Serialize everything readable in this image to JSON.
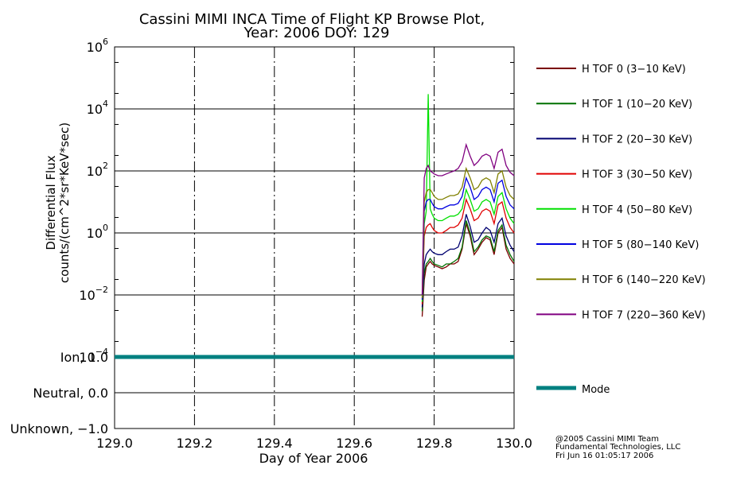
{
  "header": {
    "title_line1": "Cassini MIMI INCA Time of Flight KP Browse Plot,",
    "title_line2": "Year: 2006 DOY: 129"
  },
  "chart_data": [
    {
      "type": "line",
      "panel": "flux",
      "ylabel_line1": "Differential Flux",
      "ylabel_line2": "counts/(cm^2*sr*KeV*sec)",
      "xlim": [
        129.0,
        130.0
      ],
      "ylim": [
        0.0001,
        1000000
      ],
      "yscale": "log",
      "y_tick_labels": [
        {
          "value": 0.0001,
          "base": "10",
          "exp": "−4"
        },
        {
          "value": 0.01,
          "base": "10",
          "exp": "−2"
        },
        {
          "value": 1,
          "base": "10",
          "exp": "0"
        },
        {
          "value": 100,
          "base": "10",
          "exp": "2"
        },
        {
          "value": 10000,
          "base": "10",
          "exp": "4"
        },
        {
          "value": 1000000,
          "base": "10",
          "exp": "6"
        }
      ],
      "grid_x": [
        129.2,
        129.4,
        129.6,
        129.8
      ],
      "grid_y": [
        0.01,
        1,
        100,
        10000
      ],
      "legend_position": "right",
      "x": [
        129.77,
        129.775,
        129.78,
        129.785,
        129.79,
        129.795,
        129.8,
        129.81,
        129.82,
        129.83,
        129.84,
        129.85,
        129.86,
        129.87,
        129.88,
        129.89,
        129.9,
        129.91,
        129.92,
        129.93,
        129.94,
        129.95,
        129.96,
        129.97,
        129.98,
        129.99,
        130.0
      ],
      "series": [
        {
          "name": "H TOF 0 (3−10 KeV)",
          "color": "#7a0000",
          "values": [
            0.002,
            0.03,
            0.08,
            0.1,
            0.12,
            0.1,
            0.09,
            0.08,
            0.07,
            0.08,
            0.1,
            0.1,
            0.12,
            0.3,
            2.0,
            0.8,
            0.2,
            0.3,
            0.5,
            0.7,
            0.6,
            0.2,
            1.0,
            1.5,
            0.3,
            0.15,
            0.1
          ]
        },
        {
          "name": "H TOF 1 (10−20 KeV)",
          "color": "#007000",
          "values": [
            0.003,
            0.05,
            0.1,
            0.12,
            0.15,
            0.12,
            0.1,
            0.09,
            0.08,
            0.1,
            0.1,
            0.12,
            0.15,
            0.35,
            2.5,
            1.0,
            0.25,
            0.35,
            0.6,
            0.8,
            0.7,
            0.25,
            1.2,
            1.8,
            0.4,
            0.2,
            0.12
          ]
        },
        {
          "name": "H TOF 2 (20−30 KeV)",
          "color": "#000070",
          "values": [
            0.004,
            0.1,
            0.2,
            0.25,
            0.3,
            0.25,
            0.22,
            0.2,
            0.2,
            0.25,
            0.3,
            0.3,
            0.35,
            0.8,
            4.0,
            1.6,
            0.5,
            0.6,
            1.0,
            1.5,
            1.2,
            0.5,
            2.0,
            3.0,
            0.8,
            0.4,
            0.25
          ]
        },
        {
          "name": "H TOF 3 (30−50 KeV)",
          "color": "#e00000",
          "values": [
            0.005,
            0.8,
            1.5,
            1.8,
            2.0,
            1.5,
            1.2,
            1.0,
            1.0,
            1.2,
            1.5,
            1.5,
            1.8,
            3.0,
            12.0,
            6.0,
            2.5,
            3.0,
            5.0,
            6.0,
            5.0,
            2.0,
            8.0,
            10.0,
            3.0,
            1.5,
            1.0
          ]
        },
        {
          "name": "H TOF 4 (50−80 KeV)",
          "color": "#00e000",
          "values": [
            0.006,
            2.0,
            5.0,
            30000,
            6.0,
            4.0,
            3.0,
            2.5,
            2.5,
            3.0,
            3.5,
            3.5,
            4.0,
            6.0,
            25.0,
            12.0,
            5.0,
            6.0,
            10.0,
            12.0,
            10.0,
            4.0,
            15.0,
            20.0,
            6.0,
            3.0,
            2.0
          ]
        },
        {
          "name": "H TOF 5 (80−140 KeV)",
          "color": "#0000e0",
          "values": [
            0.007,
            5.0,
            10.0,
            12.0,
            12.0,
            9.0,
            7.0,
            6.0,
            6.0,
            7.0,
            8.0,
            8.0,
            9.0,
            15.0,
            60.0,
            30.0,
            12.0,
            15.0,
            25.0,
            30.0,
            25.0,
            10.0,
            40.0,
            50.0,
            15.0,
            8.0,
            6.0
          ]
        },
        {
          "name": "H TOF 6 (140−220 KeV)",
          "color": "#808000",
          "values": [
            0.008,
            10.0,
            20.0,
            25.0,
            25.0,
            20.0,
            15.0,
            12.0,
            12.0,
            14.0,
            16.0,
            16.0,
            18.0,
            30.0,
            120.0,
            60.0,
            25.0,
            30.0,
            50.0,
            60.0,
            50.0,
            20.0,
            80.0,
            100.0,
            30.0,
            16.0,
            12.0
          ]
        },
        {
          "name": "H TOF 7 (220−360 KeV)",
          "color": "#800080",
          "values": [
            0.01,
            60.0,
            120.0,
            150.0,
            100.0,
            90.0,
            80.0,
            70.0,
            70.0,
            80.0,
            90.0,
            100.0,
            120.0,
            200.0,
            700.0,
            300.0,
            150.0,
            200.0,
            300.0,
            350.0,
            300.0,
            120.0,
            400.0,
            500.0,
            150.0,
            90.0,
            70.0
          ]
        }
      ]
    },
    {
      "type": "line",
      "panel": "mode",
      "xlabel": "Day of Year 2006",
      "xlim": [
        129.0,
        130.0
      ],
      "ylim": [
        -1.0,
        1.0
      ],
      "y_tick_labels": [
        {
          "value": 1.0,
          "label": "Ion, 1.0"
        },
        {
          "value": 0.0,
          "label": "Neutral, 0.0"
        },
        {
          "value": -1.0,
          "label": "Unknown, −1.0"
        }
      ],
      "x_tick_labels": [
        {
          "value": 129.0,
          "label": "129.0"
        },
        {
          "value": 129.2,
          "label": "129.2"
        },
        {
          "value": 129.4,
          "label": "129.4"
        },
        {
          "value": 129.6,
          "label": "129.6"
        },
        {
          "value": 129.8,
          "label": "129.8"
        },
        {
          "value": 130.0,
          "label": "130.0"
        }
      ],
      "series": [
        {
          "name": "Mode",
          "color": "#008080",
          "x": [
            129.0,
            130.0
          ],
          "values": [
            1.0,
            1.0
          ]
        }
      ]
    }
  ],
  "footer": {
    "credit_line1": "@2005 Cassini MIMI Team",
    "credit_line2": "Fundamental Technologies, LLC",
    "credit_line3": "Fri Jun 16 01:05:17 2006"
  }
}
